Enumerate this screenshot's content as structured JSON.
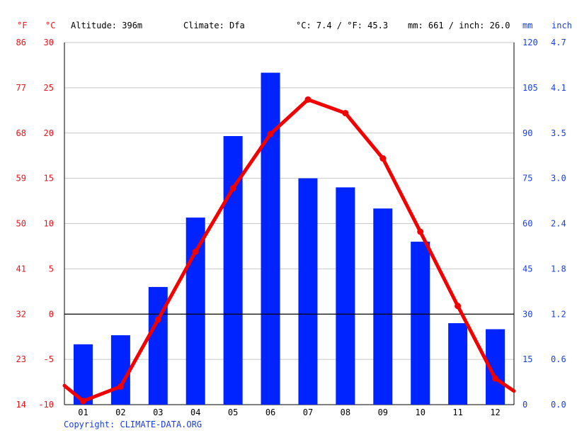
{
  "header": {
    "f_unit": "°F",
    "c_unit": "°C",
    "altitude": "Altitude: 396m",
    "climate": "Climate: Dfa",
    "temp_summary": "°C: 7.4 / °F: 45.3",
    "precip_summary": "mm: 661 / inch: 26.0",
    "mm_unit": "mm",
    "inch_unit": "inch"
  },
  "copyright": "Copyright: CLIMATE-DATA.ORG",
  "colors": {
    "temp": "#f20000",
    "precip": "#0024ff",
    "red_text": "#e8141c",
    "blue_text": "#1a3fe0",
    "grid": "#c8c8c8"
  },
  "chart_data": {
    "type": "bar",
    "categories": [
      "01",
      "02",
      "03",
      "04",
      "05",
      "06",
      "07",
      "08",
      "09",
      "10",
      "11",
      "12"
    ],
    "series": [
      {
        "type": "bar",
        "axis": "right-mm",
        "values": [
          20,
          23,
          39,
          62,
          89,
          110,
          75,
          72,
          65,
          54,
          27,
          25
        ]
      },
      {
        "type": "line",
        "axis": "left-celsius",
        "values": [
          -9.6,
          -8.0,
          -0.6,
          6.9,
          13.9,
          19.9,
          23.7,
          22.2,
          17.2,
          9.1,
          0.9,
          -7.1
        ]
      }
    ],
    "edge_temps": [
      -7.9,
      -8.5
    ],
    "left_axis_c": {
      "min": -10,
      "max": 30,
      "ticks": [
        "30",
        "25",
        "20",
        "15",
        "10",
        "5",
        "0",
        "-5",
        "-10"
      ]
    },
    "left_axis_f": {
      "ticks": [
        "86",
        "77",
        "68",
        "59",
        "50",
        "41",
        "32",
        "23",
        "14"
      ]
    },
    "right_axis_mm": {
      "min": 0,
      "max": 120,
      "ticks": [
        "120",
        "105",
        "90",
        "75",
        "60",
        "45",
        "30",
        "15",
        "0"
      ]
    },
    "right_axis_inch": {
      "ticks": [
        "4.7",
        "4.1",
        "3.5",
        "3.0",
        "2.4",
        "1.8",
        "1.2",
        "0.6",
        "0.0"
      ]
    },
    "grid": true
  }
}
